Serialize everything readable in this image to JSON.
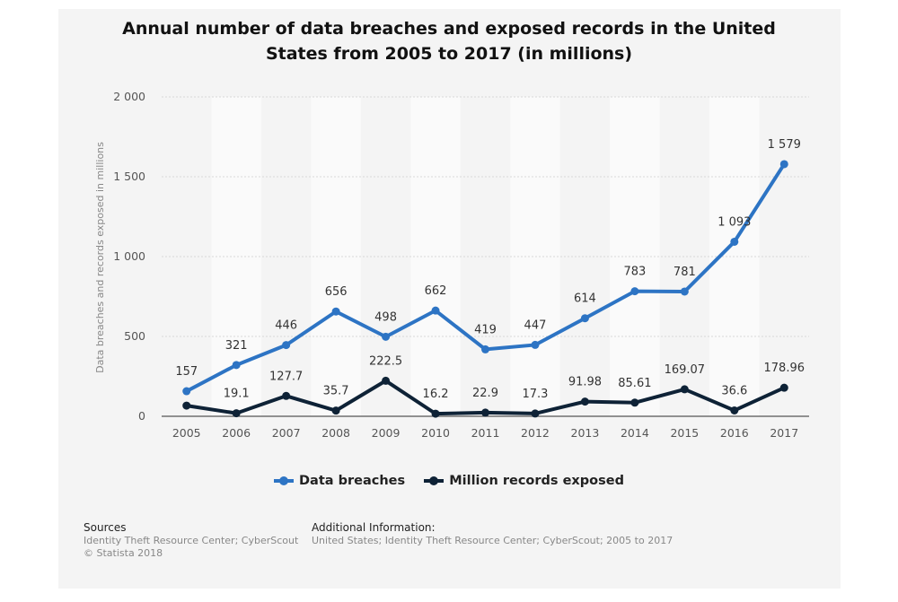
{
  "chart_data": {
    "type": "line",
    "title_line1": "Annual number of data breaches and exposed records in the United",
    "title_line2": "States from 2005 to 2017 (in millions)",
    "ylabel": "Data breaches and records exposed in millions",
    "ylim": [
      0,
      2000
    ],
    "yticks": [
      0,
      500,
      1000,
      1500,
      2000
    ],
    "ytick_labels": [
      "0",
      "500",
      "1 000",
      "1 500",
      "2 000"
    ],
    "categories": [
      "2005",
      "2006",
      "2007",
      "2008",
      "2009",
      "2010",
      "2011",
      "2012",
      "2013",
      "2014",
      "2015",
      "2016",
      "2017"
    ],
    "series": [
      {
        "name": "Data breaches",
        "color": "#2d74c4",
        "values": [
          157,
          321,
          446,
          656,
          498,
          662,
          419,
          447,
          614,
          783,
          781,
          1093,
          1579
        ],
        "labels": [
          "157",
          "321",
          "446",
          "656",
          "498",
          "662",
          "419",
          "447",
          "614",
          "783",
          "781",
          "1 093",
          "1 579"
        ]
      },
      {
        "name": "Million records exposed",
        "color": "#0e2236",
        "values": [
          66.9,
          19.1,
          127.7,
          35.7,
          222.5,
          16.2,
          22.9,
          17.3,
          91.98,
          85.61,
          169.07,
          36.6,
          178.96
        ],
        "labels": [
          "",
          "19.1",
          "127.7",
          "35.7",
          "222.5",
          "16.2",
          "22.9",
          "17.3",
          "91.98",
          "85.61",
          "169.07",
          "36.6",
          "178.96"
        ]
      }
    ],
    "grid": true,
    "legend_position": "bottom"
  },
  "footer": {
    "sources_heading": "Sources",
    "sources_line1": "Identity Theft Resource Center; CyberScout",
    "sources_line2": "© Statista 2018",
    "info_heading": "Additional Information:",
    "info_line1": "United States; Identity Theft Resource Center; CyberScout; 2005 to 2017"
  }
}
